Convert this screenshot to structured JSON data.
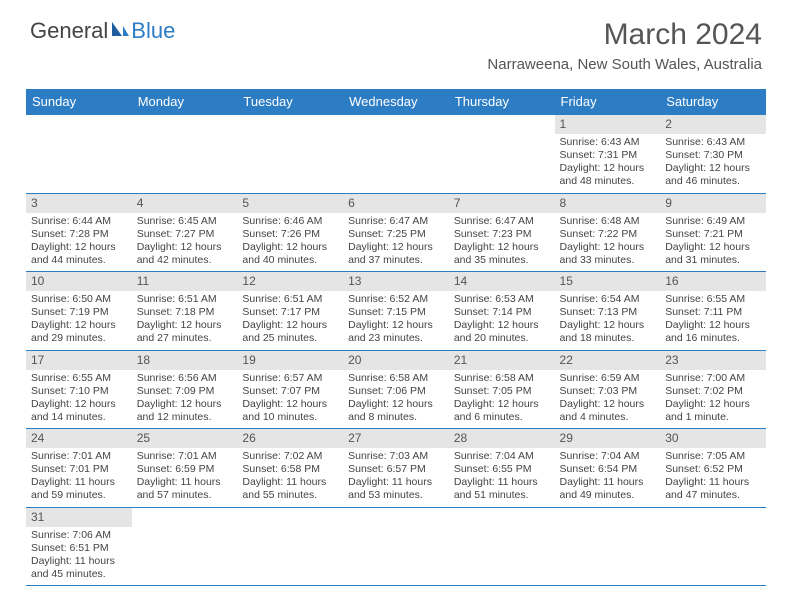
{
  "logo": {
    "text1": "General",
    "text2": "Blue"
  },
  "title": "March 2024",
  "location": "Narraweena, New South Wales, Australia",
  "colors": {
    "header_bg": "#2d7dc5",
    "header_text": "#ffffff",
    "daynum_bg": "#e5e5e5",
    "border": "#2d7dc5",
    "body_text": "#444444",
    "title_text": "#555555"
  },
  "weekdays": [
    "Sunday",
    "Monday",
    "Tuesday",
    "Wednesday",
    "Thursday",
    "Friday",
    "Saturday"
  ],
  "first_weekday_index": 5,
  "days_in_month": 31,
  "days": {
    "1": {
      "sunrise": "6:43 AM",
      "sunset": "7:31 PM",
      "daylight": "12 hours and 48 minutes."
    },
    "2": {
      "sunrise": "6:43 AM",
      "sunset": "7:30 PM",
      "daylight": "12 hours and 46 minutes."
    },
    "3": {
      "sunrise": "6:44 AM",
      "sunset": "7:28 PM",
      "daylight": "12 hours and 44 minutes."
    },
    "4": {
      "sunrise": "6:45 AM",
      "sunset": "7:27 PM",
      "daylight": "12 hours and 42 minutes."
    },
    "5": {
      "sunrise": "6:46 AM",
      "sunset": "7:26 PM",
      "daylight": "12 hours and 40 minutes."
    },
    "6": {
      "sunrise": "6:47 AM",
      "sunset": "7:25 PM",
      "daylight": "12 hours and 37 minutes."
    },
    "7": {
      "sunrise": "6:47 AM",
      "sunset": "7:23 PM",
      "daylight": "12 hours and 35 minutes."
    },
    "8": {
      "sunrise": "6:48 AM",
      "sunset": "7:22 PM",
      "daylight": "12 hours and 33 minutes."
    },
    "9": {
      "sunrise": "6:49 AM",
      "sunset": "7:21 PM",
      "daylight": "12 hours and 31 minutes."
    },
    "10": {
      "sunrise": "6:50 AM",
      "sunset": "7:19 PM",
      "daylight": "12 hours and 29 minutes."
    },
    "11": {
      "sunrise": "6:51 AM",
      "sunset": "7:18 PM",
      "daylight": "12 hours and 27 minutes."
    },
    "12": {
      "sunrise": "6:51 AM",
      "sunset": "7:17 PM",
      "daylight": "12 hours and 25 minutes."
    },
    "13": {
      "sunrise": "6:52 AM",
      "sunset": "7:15 PM",
      "daylight": "12 hours and 23 minutes."
    },
    "14": {
      "sunrise": "6:53 AM",
      "sunset": "7:14 PM",
      "daylight": "12 hours and 20 minutes."
    },
    "15": {
      "sunrise": "6:54 AM",
      "sunset": "7:13 PM",
      "daylight": "12 hours and 18 minutes."
    },
    "16": {
      "sunrise": "6:55 AM",
      "sunset": "7:11 PM",
      "daylight": "12 hours and 16 minutes."
    },
    "17": {
      "sunrise": "6:55 AM",
      "sunset": "7:10 PM",
      "daylight": "12 hours and 14 minutes."
    },
    "18": {
      "sunrise": "6:56 AM",
      "sunset": "7:09 PM",
      "daylight": "12 hours and 12 minutes."
    },
    "19": {
      "sunrise": "6:57 AM",
      "sunset": "7:07 PM",
      "daylight": "12 hours and 10 minutes."
    },
    "20": {
      "sunrise": "6:58 AM",
      "sunset": "7:06 PM",
      "daylight": "12 hours and 8 minutes."
    },
    "21": {
      "sunrise": "6:58 AM",
      "sunset": "7:05 PM",
      "daylight": "12 hours and 6 minutes."
    },
    "22": {
      "sunrise": "6:59 AM",
      "sunset": "7:03 PM",
      "daylight": "12 hours and 4 minutes."
    },
    "23": {
      "sunrise": "7:00 AM",
      "sunset": "7:02 PM",
      "daylight": "12 hours and 1 minute."
    },
    "24": {
      "sunrise": "7:01 AM",
      "sunset": "7:01 PM",
      "daylight": "11 hours and 59 minutes."
    },
    "25": {
      "sunrise": "7:01 AM",
      "sunset": "6:59 PM",
      "daylight": "11 hours and 57 minutes."
    },
    "26": {
      "sunrise": "7:02 AM",
      "sunset": "6:58 PM",
      "daylight": "11 hours and 55 minutes."
    },
    "27": {
      "sunrise": "7:03 AM",
      "sunset": "6:57 PM",
      "daylight": "11 hours and 53 minutes."
    },
    "28": {
      "sunrise": "7:04 AM",
      "sunset": "6:55 PM",
      "daylight": "11 hours and 51 minutes."
    },
    "29": {
      "sunrise": "7:04 AM",
      "sunset": "6:54 PM",
      "daylight": "11 hours and 49 minutes."
    },
    "30": {
      "sunrise": "7:05 AM",
      "sunset": "6:52 PM",
      "daylight": "11 hours and 47 minutes."
    },
    "31": {
      "sunrise": "7:06 AM",
      "sunset": "6:51 PM",
      "daylight": "11 hours and 45 minutes."
    }
  },
  "labels": {
    "sunrise": "Sunrise:",
    "sunset": "Sunset:",
    "daylight": "Daylight:"
  }
}
